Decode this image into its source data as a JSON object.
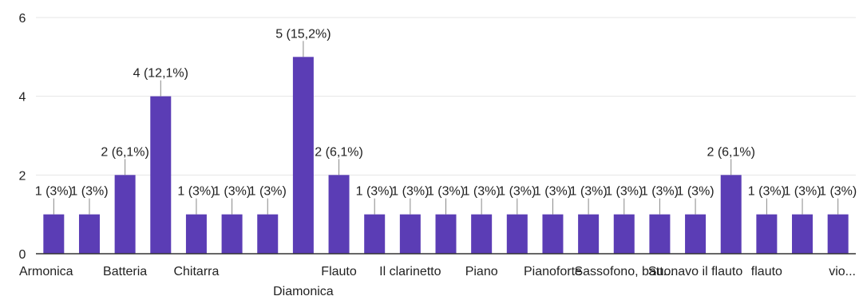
{
  "chart_data": {
    "type": "bar",
    "categories": [
      "Armonica",
      "",
      "Batteria",
      "",
      "Chitarra",
      "",
      "",
      "Diamonica",
      "Flauto",
      "",
      "Il clarinetto",
      "",
      "Piano",
      "",
      "Pianoforte",
      "",
      "Sassofono, batt...",
      "",
      "Suonavo il flauto",
      "",
      "flauto",
      "",
      "vio..."
    ],
    "values": [
      1,
      1,
      2,
      4,
      1,
      1,
      1,
      5,
      2,
      1,
      1,
      1,
      1,
      1,
      1,
      1,
      1,
      1,
      1,
      2,
      1,
      1,
      1
    ],
    "data_labels": [
      "1 (3%)",
      "1 (3%)",
      "2 (6,1%)",
      "4 (12,1%)",
      "1 (3%)",
      "1 (3%)",
      "1 (3%)",
      "5 (15,2%)",
      "2 (6,1%)",
      "1 (3%)",
      "1 (3%)",
      "1 (3%)",
      "1 (3%)",
      "1 (3%)",
      "1 (3%)",
      "1 (3%)",
      "1 (3%)",
      "1 (3%)",
      "1 (3%)",
      "2 (6,1%)",
      "1 (3%)",
      "1 (3%)",
      "1 (3%)"
    ],
    "yticks": [
      "0",
      "2",
      "4",
      "6"
    ],
    "ylim": [
      0,
      6
    ],
    "title": "",
    "xlabel": "",
    "ylabel": "",
    "grid": true,
    "bar_color": "#5b3db5",
    "grid_color": "#e6e6e6",
    "axis_color": "#333333"
  }
}
